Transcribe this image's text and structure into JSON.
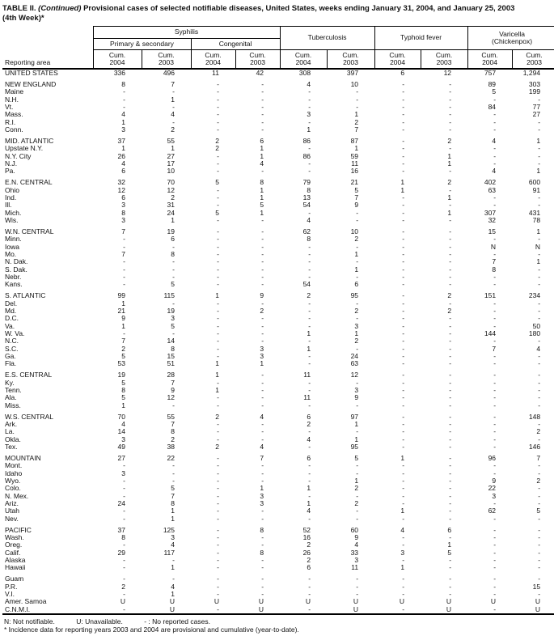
{
  "title": {
    "prefix": "TABLE II. ",
    "continued": "(Continued)",
    "rest": " Provisional cases of selected notifiable diseases, United States, weeks ending January 31, 2004, and January 25, 2003",
    "line2": "(4th Week)*"
  },
  "header": {
    "reporting_area": "Reporting area",
    "syphilis": "Syphilis",
    "primary_secondary": "Primary & secondary",
    "congenital": "Congenital",
    "tuberculosis": "Tuberculosis",
    "typhoid": "Typhoid fever",
    "varicella_line1": "Varicella",
    "varicella_line2": "(Chickenpox)",
    "cum": "Cum.",
    "years": [
      "2004",
      "2003"
    ]
  },
  "rows": [
    {
      "area": "UNITED STATES",
      "level": "national",
      "gap": false,
      "values": [
        "336",
        "496",
        "11",
        "42",
        "308",
        "397",
        "6",
        "12",
        "757",
        "1,294"
      ]
    },
    {
      "area": "NEW ENGLAND",
      "level": "region",
      "gap": true,
      "values": [
        "8",
        "7",
        "-",
        "-",
        "4",
        "10",
        "-",
        "-",
        "89",
        "303"
      ]
    },
    {
      "area": "Maine",
      "level": "state",
      "gap": false,
      "values": [
        "-",
        "-",
        "-",
        "-",
        "-",
        "-",
        "-",
        "-",
        "5",
        "199"
      ]
    },
    {
      "area": "N.H.",
      "level": "state",
      "gap": false,
      "values": [
        "-",
        "1",
        "-",
        "-",
        "-",
        "-",
        "-",
        "-",
        "-",
        "-"
      ]
    },
    {
      "area": "Vt.",
      "level": "state",
      "gap": false,
      "values": [
        "-",
        "-",
        "-",
        "-",
        "-",
        "-",
        "-",
        "-",
        "84",
        "77"
      ]
    },
    {
      "area": "Mass.",
      "level": "state",
      "gap": false,
      "values": [
        "4",
        "4",
        "-",
        "-",
        "3",
        "1",
        "-",
        "-",
        "-",
        "27"
      ]
    },
    {
      "area": "R.I.",
      "level": "state",
      "gap": false,
      "values": [
        "1",
        "-",
        "-",
        "-",
        "-",
        "2",
        "-",
        "-",
        "-",
        "-"
      ]
    },
    {
      "area": "Conn.",
      "level": "state",
      "gap": false,
      "values": [
        "3",
        "2",
        "-",
        "-",
        "1",
        "7",
        "-",
        "-",
        "-",
        "-"
      ]
    },
    {
      "area": "MID. ATLANTIC",
      "level": "region",
      "gap": true,
      "values": [
        "37",
        "55",
        "2",
        "6",
        "86",
        "87",
        "-",
        "2",
        "4",
        "1"
      ]
    },
    {
      "area": "Upstate N.Y.",
      "level": "state",
      "gap": false,
      "values": [
        "1",
        "1",
        "2",
        "1",
        "-",
        "1",
        "-",
        "-",
        "-",
        "-"
      ]
    },
    {
      "area": "N.Y. City",
      "level": "state",
      "gap": false,
      "values": [
        "26",
        "27",
        "-",
        "1",
        "86",
        "59",
        "-",
        "1",
        "-",
        "-"
      ]
    },
    {
      "area": "N.J.",
      "level": "state",
      "gap": false,
      "values": [
        "4",
        "17",
        "-",
        "4",
        "-",
        "11",
        "-",
        "1",
        "-",
        "-"
      ]
    },
    {
      "area": "Pa.",
      "level": "state",
      "gap": false,
      "values": [
        "6",
        "10",
        "-",
        "-",
        "-",
        "16",
        "-",
        "-",
        "4",
        "1"
      ]
    },
    {
      "area": "E.N. CENTRAL",
      "level": "region",
      "gap": true,
      "values": [
        "32",
        "70",
        "5",
        "8",
        "79",
        "21",
        "1",
        "2",
        "402",
        "600"
      ]
    },
    {
      "area": "Ohio",
      "level": "state",
      "gap": false,
      "values": [
        "12",
        "12",
        "-",
        "1",
        "8",
        "5",
        "1",
        "-",
        "63",
        "91"
      ]
    },
    {
      "area": "Ind.",
      "level": "state",
      "gap": false,
      "values": [
        "6",
        "2",
        "-",
        "1",
        "13",
        "7",
        "-",
        "1",
        "-",
        "-"
      ]
    },
    {
      "area": "Ill.",
      "level": "state",
      "gap": false,
      "values": [
        "3",
        "31",
        "-",
        "5",
        "54",
        "9",
        "-",
        "-",
        "-",
        "-"
      ]
    },
    {
      "area": "Mich.",
      "level": "state",
      "gap": false,
      "values": [
        "8",
        "24",
        "5",
        "1",
        "-",
        "-",
        "-",
        "1",
        "307",
        "431"
      ]
    },
    {
      "area": "Wis.",
      "level": "state",
      "gap": false,
      "values": [
        "3",
        "1",
        "-",
        "-",
        "4",
        "-",
        "-",
        "-",
        "32",
        "78"
      ]
    },
    {
      "area": "W.N. CENTRAL",
      "level": "region",
      "gap": true,
      "values": [
        "7",
        "19",
        "-",
        "-",
        "62",
        "10",
        "-",
        "-",
        "15",
        "1"
      ]
    },
    {
      "area": "Minn.",
      "level": "state",
      "gap": false,
      "values": [
        "-",
        "6",
        "-",
        "-",
        "8",
        "2",
        "-",
        "-",
        "-",
        "-"
      ]
    },
    {
      "area": "Iowa",
      "level": "state",
      "gap": false,
      "values": [
        "-",
        "-",
        "-",
        "-",
        "-",
        "-",
        "-",
        "-",
        "N",
        "N"
      ]
    },
    {
      "area": "Mo.",
      "level": "state",
      "gap": false,
      "values": [
        "7",
        "8",
        "-",
        "-",
        "-",
        "1",
        "-",
        "-",
        "-",
        "-"
      ]
    },
    {
      "area": "N. Dak.",
      "level": "state",
      "gap": false,
      "values": [
        "-",
        "-",
        "-",
        "-",
        "-",
        "-",
        "-",
        "-",
        "7",
        "1"
      ]
    },
    {
      "area": "S. Dak.",
      "level": "state",
      "gap": false,
      "values": [
        "-",
        "-",
        "-",
        "-",
        "-",
        "1",
        "-",
        "-",
        "8",
        "-"
      ]
    },
    {
      "area": "Nebr.",
      "level": "state",
      "gap": false,
      "values": [
        "-",
        "-",
        "-",
        "-",
        "-",
        "-",
        "-",
        "-",
        "-",
        "-"
      ]
    },
    {
      "area": "Kans.",
      "level": "state",
      "gap": false,
      "values": [
        "-",
        "5",
        "-",
        "-",
        "54",
        "6",
        "-",
        "-",
        "-",
        "-"
      ]
    },
    {
      "area": "S. ATLANTIC",
      "level": "region",
      "gap": true,
      "values": [
        "99",
        "115",
        "1",
        "9",
        "2",
        "95",
        "-",
        "2",
        "151",
        "234"
      ]
    },
    {
      "area": "Del.",
      "level": "state",
      "gap": false,
      "values": [
        "1",
        "-",
        "-",
        "-",
        "-",
        "-",
        "-",
        "-",
        "-",
        "-"
      ]
    },
    {
      "area": "Md.",
      "level": "state",
      "gap": false,
      "values": [
        "21",
        "19",
        "-",
        "2",
        "-",
        "2",
        "-",
        "2",
        "-",
        "-"
      ]
    },
    {
      "area": "D.C.",
      "level": "state",
      "gap": false,
      "values": [
        "9",
        "3",
        "-",
        "-",
        "-",
        "-",
        "-",
        "-",
        "-",
        "-"
      ]
    },
    {
      "area": "Va.",
      "level": "state",
      "gap": false,
      "values": [
        "1",
        "5",
        "-",
        "-",
        "-",
        "3",
        "-",
        "-",
        "-",
        "50"
      ]
    },
    {
      "area": "W. Va.",
      "level": "state",
      "gap": false,
      "values": [
        "-",
        "-",
        "-",
        "-",
        "1",
        "1",
        "-",
        "-",
        "144",
        "180"
      ]
    },
    {
      "area": "N.C.",
      "level": "state",
      "gap": false,
      "values": [
        "7",
        "14",
        "-",
        "-",
        "-",
        "2",
        "-",
        "-",
        "-",
        "-"
      ]
    },
    {
      "area": "S.C.",
      "level": "state",
      "gap": false,
      "values": [
        "2",
        "8",
        "-",
        "3",
        "1",
        "-",
        "-",
        "-",
        "7",
        "4"
      ]
    },
    {
      "area": "Ga.",
      "level": "state",
      "gap": false,
      "values": [
        "5",
        "15",
        "-",
        "3",
        "-",
        "24",
        "-",
        "-",
        "-",
        "-"
      ]
    },
    {
      "area": "Fla.",
      "level": "state",
      "gap": false,
      "values": [
        "53",
        "51",
        "1",
        "1",
        "-",
        "63",
        "-",
        "-",
        "-",
        "-"
      ]
    },
    {
      "area": "E.S. CENTRAL",
      "level": "region",
      "gap": true,
      "values": [
        "19",
        "28",
        "1",
        "-",
        "11",
        "12",
        "-",
        "-",
        "-",
        "-"
      ]
    },
    {
      "area": "Ky.",
      "level": "state",
      "gap": false,
      "values": [
        "5",
        "7",
        "-",
        "-",
        "-",
        "-",
        "-",
        "-",
        "-",
        "-"
      ]
    },
    {
      "area": "Tenn.",
      "level": "state",
      "gap": false,
      "values": [
        "8",
        "9",
        "1",
        "-",
        "-",
        "3",
        "-",
        "-",
        "-",
        "-"
      ]
    },
    {
      "area": "Ala.",
      "level": "state",
      "gap": false,
      "values": [
        "5",
        "12",
        "-",
        "-",
        "11",
        "9",
        "-",
        "-",
        "-",
        "-"
      ]
    },
    {
      "area": "Miss.",
      "level": "state",
      "gap": false,
      "values": [
        "1",
        "-",
        "-",
        "-",
        "-",
        "-",
        "-",
        "-",
        "-",
        "-"
      ]
    },
    {
      "area": "W.S. CENTRAL",
      "level": "region",
      "gap": true,
      "values": [
        "70",
        "55",
        "2",
        "4",
        "6",
        "97",
        "-",
        "-",
        "-",
        "148"
      ]
    },
    {
      "area": "Ark.",
      "level": "state",
      "gap": false,
      "values": [
        "4",
        "7",
        "-",
        "-",
        "2",
        "1",
        "-",
        "-",
        "-",
        "-"
      ]
    },
    {
      "area": "La.",
      "level": "state",
      "gap": false,
      "values": [
        "14",
        "8",
        "-",
        "-",
        "-",
        "-",
        "-",
        "-",
        "-",
        "2"
      ]
    },
    {
      "area": "Okla.",
      "level": "state",
      "gap": false,
      "values": [
        "3",
        "2",
        "-",
        "-",
        "4",
        "1",
        "-",
        "-",
        "-",
        "-"
      ]
    },
    {
      "area": "Tex.",
      "level": "state",
      "gap": false,
      "values": [
        "49",
        "38",
        "2",
        "4",
        "-",
        "95",
        "-",
        "-",
        "-",
        "146"
      ]
    },
    {
      "area": "MOUNTAIN",
      "level": "region",
      "gap": true,
      "values": [
        "27",
        "22",
        "-",
        "7",
        "6",
        "5",
        "1",
        "-",
        "96",
        "7"
      ]
    },
    {
      "area": "Mont.",
      "level": "state",
      "gap": false,
      "values": [
        "-",
        "-",
        "-",
        "-",
        "-",
        "-",
        "-",
        "-",
        "-",
        "-"
      ]
    },
    {
      "area": "Idaho",
      "level": "state",
      "gap": false,
      "values": [
        "3",
        "-",
        "-",
        "-",
        "-",
        "-",
        "-",
        "-",
        "-",
        "-"
      ]
    },
    {
      "area": "Wyo.",
      "level": "state",
      "gap": false,
      "values": [
        "-",
        "-",
        "-",
        "-",
        "-",
        "1",
        "-",
        "-",
        "9",
        "2"
      ]
    },
    {
      "area": "Colo.",
      "level": "state",
      "gap": false,
      "values": [
        "-",
        "5",
        "-",
        "1",
        "1",
        "2",
        "-",
        "-",
        "22",
        "-"
      ]
    },
    {
      "area": "N. Mex.",
      "level": "state",
      "gap": false,
      "values": [
        "-",
        "7",
        "-",
        "3",
        "-",
        "-",
        "-",
        "-",
        "3",
        "-"
      ]
    },
    {
      "area": "Ariz.",
      "level": "state",
      "gap": false,
      "values": [
        "24",
        "8",
        "-",
        "3",
        "1",
        "2",
        "-",
        "-",
        "-",
        "-"
      ]
    },
    {
      "area": "Utah",
      "level": "state",
      "gap": false,
      "values": [
        "-",
        "1",
        "-",
        "-",
        "4",
        "-",
        "1",
        "-",
        "62",
        "5"
      ]
    },
    {
      "area": "Nev.",
      "level": "state",
      "gap": false,
      "values": [
        "-",
        "1",
        "-",
        "-",
        "-",
        "-",
        "-",
        "-",
        "-",
        "-"
      ]
    },
    {
      "area": "PACIFIC",
      "level": "region",
      "gap": true,
      "values": [
        "37",
        "125",
        "-",
        "8",
        "52",
        "60",
        "4",
        "6",
        "-",
        "-"
      ]
    },
    {
      "area": "Wash.",
      "level": "state",
      "gap": false,
      "values": [
        "8",
        "3",
        "-",
        "-",
        "16",
        "9",
        "-",
        "-",
        "-",
        "-"
      ]
    },
    {
      "area": "Oreg.",
      "level": "state",
      "gap": false,
      "values": [
        "-",
        "4",
        "-",
        "-",
        "2",
        "4",
        "-",
        "1",
        "-",
        "-"
      ]
    },
    {
      "area": "Calif.",
      "level": "state",
      "gap": false,
      "values": [
        "29",
        "117",
        "-",
        "8",
        "26",
        "33",
        "3",
        "5",
        "-",
        "-"
      ]
    },
    {
      "area": "Alaska",
      "level": "state",
      "gap": false,
      "values": [
        "-",
        "-",
        "-",
        "-",
        "2",
        "3",
        "-",
        "-",
        "-",
        "-"
      ]
    },
    {
      "area": "Hawaii",
      "level": "state",
      "gap": false,
      "values": [
        "-",
        "1",
        "-",
        "-",
        "6",
        "11",
        "1",
        "-",
        "-",
        "-"
      ]
    },
    {
      "area": "Guam",
      "level": "territory",
      "gap": true,
      "values": [
        "-",
        "-",
        "-",
        "-",
        "-",
        "-",
        "-",
        "-",
        "-",
        "-"
      ]
    },
    {
      "area": "P.R.",
      "level": "territory",
      "gap": false,
      "values": [
        "2",
        "4",
        "-",
        "-",
        "-",
        "-",
        "-",
        "-",
        "-",
        "15"
      ]
    },
    {
      "area": "V.I.",
      "level": "territory",
      "gap": false,
      "values": [
        "-",
        "1",
        "-",
        "-",
        "-",
        "-",
        "-",
        "-",
        "-",
        "-"
      ]
    },
    {
      "area": "Amer. Samoa",
      "level": "territory",
      "gap": false,
      "values": [
        "U",
        "U",
        "U",
        "U",
        "U",
        "U",
        "U",
        "U",
        "U",
        "U"
      ]
    },
    {
      "area": "C.N.M.I.",
      "level": "territory",
      "gap": false,
      "values": [
        "-",
        "U",
        "-",
        "U",
        "-",
        "U",
        "-",
        "U",
        "-",
        "U"
      ]
    }
  ],
  "footnotes": {
    "legend": [
      "N: Not notifiable.",
      "U: Unavailable.",
      "- : No reported cases."
    ],
    "note": "* Incidence data for reporting years 2003 and 2004 are provisional and cumulative (year-to-date)."
  }
}
